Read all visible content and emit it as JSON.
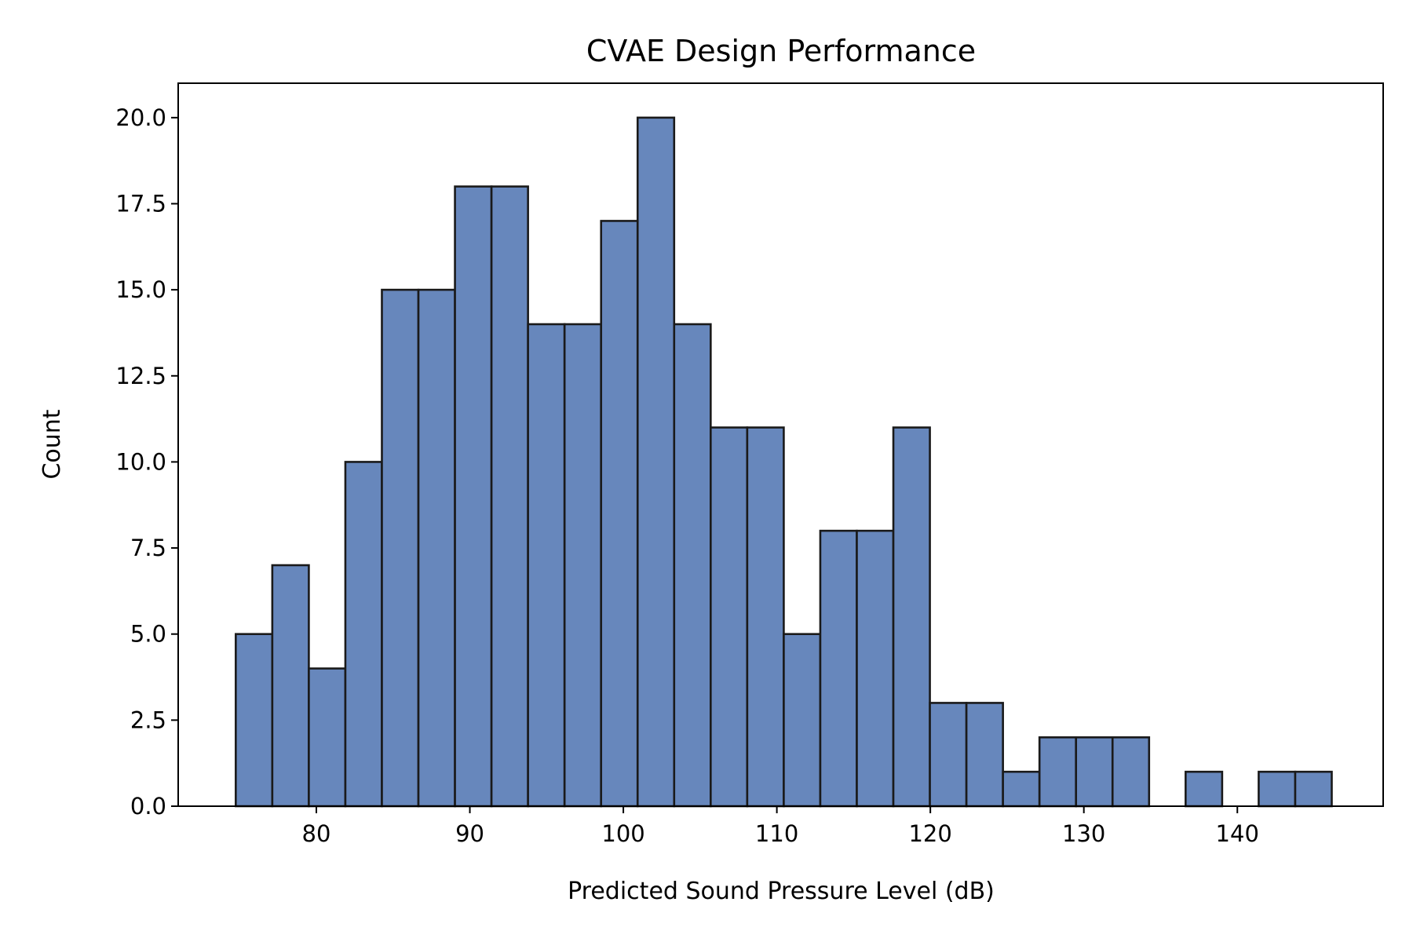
{
  "chart_data": {
    "type": "bar",
    "title": "CVAE Design Performance",
    "xlabel": "Predicted Sound Pressure Level (dB)",
    "ylabel": "Count",
    "xlim": [
      71.0,
      149.5
    ],
    "ylim": [
      0,
      21
    ],
    "grid": false,
    "bar_color": "#6787bc",
    "edge_color": "#1a1a1a",
    "x_ticks": [
      80,
      90,
      100,
      110,
      120,
      130,
      140
    ],
    "x_tick_labels": [
      "80",
      "90",
      "100",
      "110",
      "120",
      "130",
      "140"
    ],
    "y_ticks": [
      0,
      2.5,
      5,
      7.5,
      10,
      12.5,
      15,
      17.5,
      20
    ],
    "y_tick_labels": [
      "0.0",
      "2.5",
      "5.0",
      "7.5",
      "10.0",
      "12.5",
      "15.0",
      "17.5",
      "20.0"
    ],
    "bin_start": 74.75,
    "bin_width": 2.38,
    "counts": [
      5,
      7,
      4,
      10,
      15,
      15,
      18,
      18,
      14,
      14,
      17,
      20,
      14,
      11,
      11,
      5,
      8,
      8,
      11,
      3,
      3,
      1,
      2,
      2,
      2,
      0,
      1,
      0,
      1,
      1
    ]
  }
}
